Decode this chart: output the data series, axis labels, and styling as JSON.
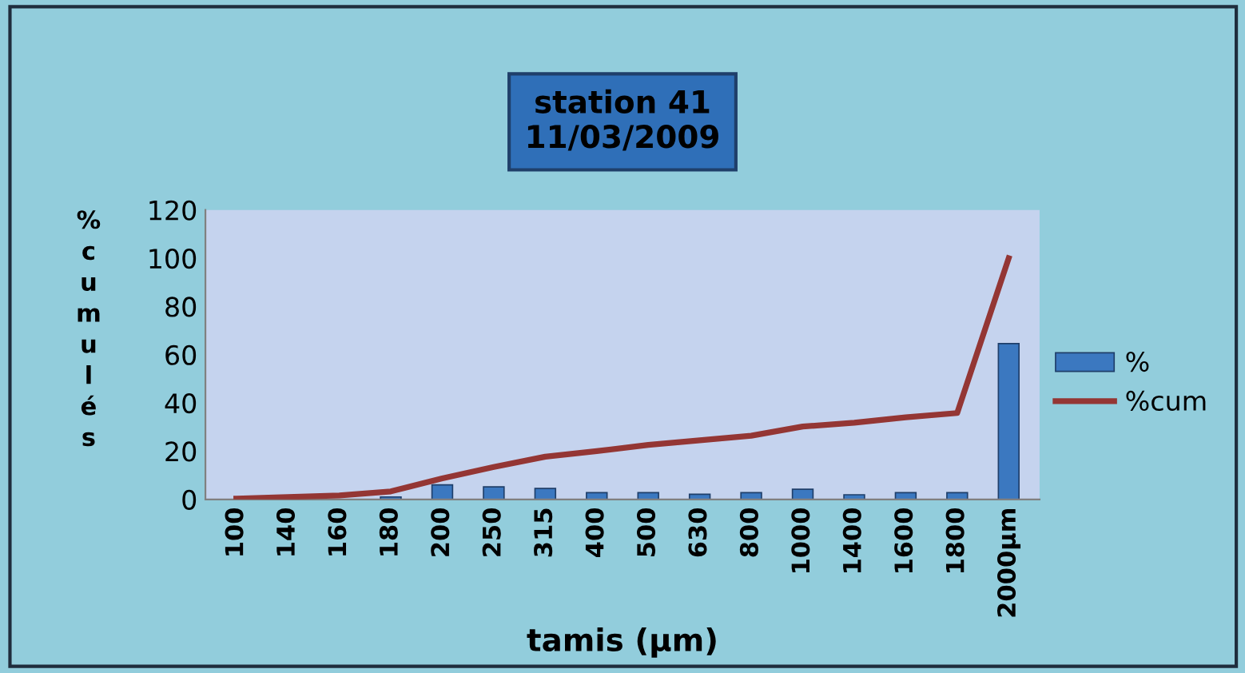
{
  "chart_data": {
    "type": "bar",
    "title": "station 41\n11/03/2009",
    "xlabel": "tamis (µm)",
    "ylabel": "% cumulés",
    "categories": [
      "100",
      "140",
      "160",
      "180",
      "200",
      "250",
      "315",
      "400",
      "500",
      "630",
      "800",
      "1000",
      "1400",
      "1600",
      "1800",
      "2000µm"
    ],
    "series": [
      {
        "name": "%",
        "color": "#3b78c0",
        "values": [
          null,
          null,
          null,
          1,
          6,
          5.2,
          4.5,
          2.8,
          2.8,
          2.1,
          2.8,
          4.2,
          1.9,
          2.8,
          2.8,
          64.6
        ]
      },
      {
        "name": "%cum",
        "type": "line",
        "color": "#943634",
        "values": [
          0.3,
          1,
          1.6,
          3.3,
          8.7,
          13.4,
          17.7,
          20,
          22.6,
          24.5,
          26.4,
          30.2,
          31.8,
          34,
          35.8,
          100
        ]
      }
    ],
    "ylim": [
      0,
      120
    ],
    "yticks": [
      0,
      20,
      40,
      60,
      80,
      100,
      120
    ],
    "grid": false,
    "legend": "right"
  }
}
